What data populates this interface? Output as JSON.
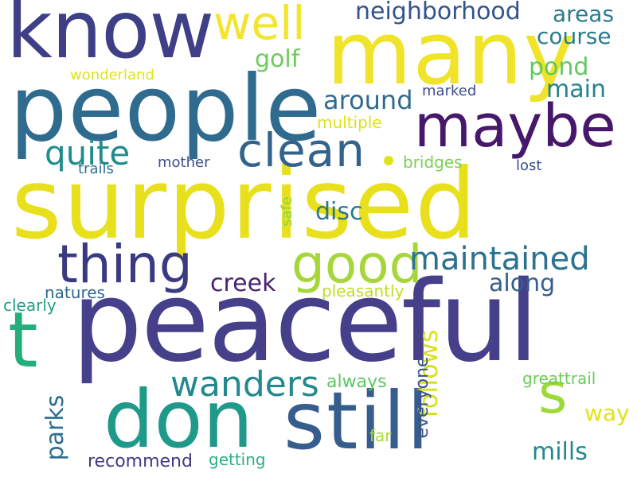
{
  "words": [
    {
      "text": "surprised",
      "color": "#e8e01c"
    },
    {
      "text": "peaceful",
      "color": "#463f8a"
    },
    {
      "text": "people",
      "color": "#2e6b8e"
    },
    {
      "text": "many",
      "color": "#f0e42a"
    },
    {
      "text": "know",
      "color": "#3f3f88"
    },
    {
      "text": "don",
      "color": "#1f9a8a"
    },
    {
      "text": "still",
      "color": "#365d8d"
    },
    {
      "text": "maybe",
      "color": "#46176a"
    },
    {
      "text": "thing",
      "color": "#3a3a82"
    },
    {
      "text": "good",
      "color": "#a5d63a"
    },
    {
      "text": "clean",
      "color": "#33638d"
    },
    {
      "text": "well",
      "color": "#f2e52b"
    },
    {
      "text": "t",
      "color": "#26ad7c"
    },
    {
      "text": "s",
      "color": "#9cd93b"
    },
    {
      "text": "maintained",
      "color": "#2c728e"
    },
    {
      "text": "wanders",
      "color": "#23898e"
    },
    {
      "text": "quite",
      "color": "#1f8c8c"
    },
    {
      "text": "neighborhood",
      "color": "#33538c"
    },
    {
      "text": "around",
      "color": "#2f6b8e"
    },
    {
      "text": "creek",
      "color": "#482173"
    },
    {
      "text": "along",
      "color": "#355f8d"
    },
    {
      "text": "disc",
      "color": "#2a788e"
    },
    {
      "text": "areas",
      "color": "#2a7b8e"
    },
    {
      "text": "course",
      "color": "#277f8e"
    },
    {
      "text": "pond",
      "color": "#5ec962"
    },
    {
      "text": "main",
      "color": "#25838e"
    },
    {
      "text": "golf",
      "color": "#6ccd5a"
    },
    {
      "text": "follows",
      "color": "#d8e21c"
    },
    {
      "text": "way",
      "color": "#e0e31a"
    },
    {
      "text": "mills",
      "color": "#23888e"
    },
    {
      "text": "parks",
      "color": "#2c6e8e"
    },
    {
      "text": "everyone",
      "color": "#3a528b"
    },
    {
      "text": "recommend",
      "color": "#443a83"
    },
    {
      "text": "getting",
      "color": "#2ab07f"
    },
    {
      "text": "far",
      "color": "#a8db34"
    },
    {
      "text": "always",
      "color": "#5ac864"
    },
    {
      "text": "greattrail",
      "color": "#6ccd5a"
    },
    {
      "text": "natures",
      "color": "#31668e"
    },
    {
      "text": "clearly",
      "color": "#1fa088"
    },
    {
      "text": "pleasantly",
      "color": "#bddf26"
    },
    {
      "text": "safe",
      "color": "#84d44b"
    },
    {
      "text": "bridges",
      "color": "#7ad151"
    },
    {
      "text": "lost",
      "color": "#3b518b"
    },
    {
      "text": "mother",
      "color": "#3d4e8a"
    },
    {
      "text": "trails",
      "color": "#2c6e8e"
    },
    {
      "text": "multiple",
      "color": "#dde318"
    },
    {
      "text": "marked",
      "color": "#3e4c8a"
    },
    {
      "text": "wonderland",
      "color": "#e0e31a"
    }
  ]
}
